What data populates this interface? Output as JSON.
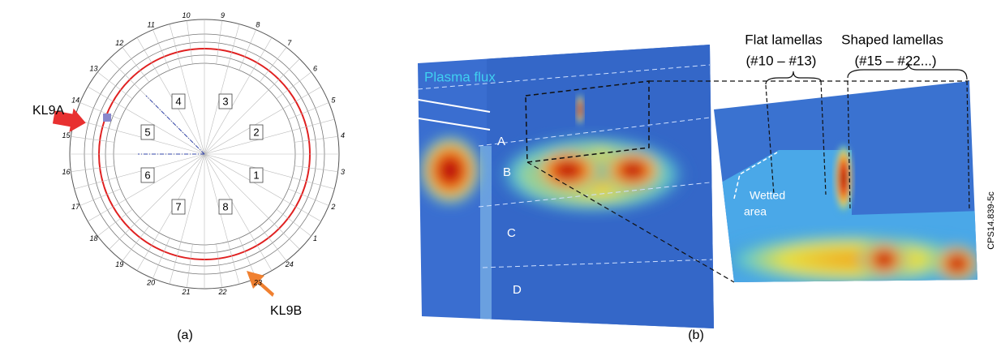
{
  "panel_a": {
    "label": "(a)",
    "arrows": [
      "KL9A",
      "KL9B"
    ],
    "octants": [
      "1",
      "2",
      "3",
      "4",
      "5",
      "6",
      "7",
      "8"
    ],
    "sectors": [
      "1",
      "2",
      "3",
      "4",
      "5",
      "6",
      "7",
      "8",
      "9",
      "10",
      "11",
      "12",
      "13",
      "14",
      "15",
      "16",
      "17",
      "18",
      "19",
      "20",
      "21",
      "22",
      "23",
      "24"
    ]
  },
  "panel_b": {
    "label": "(b)",
    "plasma_flux": "Plasma flux",
    "rows": [
      "A",
      "B",
      "C",
      "D"
    ],
    "flat": {
      "title": "Flat lamellas",
      "range": "(#10 – #13)"
    },
    "shaped": {
      "title": "Shaped lamellas",
      "range": "(#15 – #22...)"
    },
    "wetted": [
      "Wetted",
      "area"
    ],
    "code": "CPS14.839-5c"
  }
}
